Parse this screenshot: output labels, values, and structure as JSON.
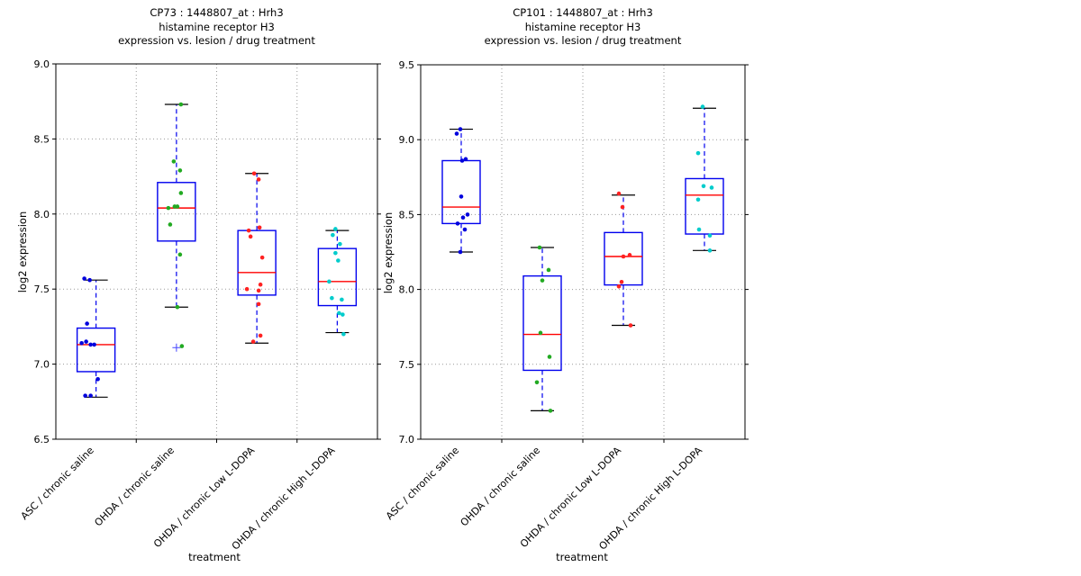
{
  "figure": {
    "background": "#ffffff",
    "style_colors": {
      "box": "#0000ee",
      "median": "#ff0000",
      "whisker": "#0000ee",
      "cap": "#000000",
      "grid": "#999999",
      "outlier_marker": "#4444ff",
      "axis": "#000000"
    }
  },
  "chart_data": [
    {
      "id": "CP73",
      "type": "boxplot",
      "title_lines": [
        "CP73 : 1448807_at : Hrh3",
        "histamine receptor H3",
        "expression vs. lesion / drug treatment"
      ],
      "ylabel": "log2 expression",
      "xlabel": "treatment",
      "ylim": [
        6.5,
        9.0
      ],
      "yticks": [
        6.5,
        7.0,
        7.5,
        8.0,
        8.5,
        9.0
      ],
      "grid": true,
      "categories": [
        "ASC / chronic saline",
        "OHDA / chronic saline",
        "OHDA / chronic Low L-DOPA",
        "OHDA / chronic High L-DOPA"
      ],
      "groups": [
        {
          "category": "ASC / chronic saline",
          "color": "#0000dd",
          "median": 7.13,
          "q1": 6.95,
          "q3": 7.24,
          "whisker_low": 6.78,
          "whisker_high": 7.56,
          "outliers": [],
          "points": [
            [
              -13,
              7.57
            ],
            [
              -7,
              7.56
            ],
            [
              -10,
              7.27
            ],
            [
              -16,
              7.14
            ],
            [
              -11,
              7.15
            ],
            [
              -6,
              7.13
            ],
            [
              -2,
              7.13
            ],
            [
              2,
              6.9
            ],
            [
              -12,
              6.79
            ],
            [
              -6,
              6.79
            ]
          ]
        },
        {
          "category": "OHDA / chronic saline",
          "color": "#22aa22",
          "median": 8.04,
          "q1": 7.82,
          "q3": 8.21,
          "whisker_low": 7.38,
          "whisker_high": 8.73,
          "outliers": [
            7.11
          ],
          "points": [
            [
              5,
              8.73
            ],
            [
              -3,
              8.35
            ],
            [
              4,
              8.29
            ],
            [
              5,
              8.14
            ],
            [
              -9,
              8.04
            ],
            [
              -2,
              8.05
            ],
            [
              1,
              8.05
            ],
            [
              -7,
              7.93
            ],
            [
              4,
              7.73
            ],
            [
              1,
              7.38
            ],
            [
              6,
              7.12
            ]
          ]
        },
        {
          "category": "OHDA / chronic Low L-DOPA",
          "color": "#ff2222",
          "median": 7.61,
          "q1": 7.46,
          "q3": 7.89,
          "whisker_low": 7.14,
          "whisker_high": 8.27,
          "outliers": [],
          "points": [
            [
              -3,
              8.27
            ],
            [
              2,
              8.23
            ],
            [
              3,
              7.91
            ],
            [
              -9,
              7.89
            ],
            [
              -7,
              7.85
            ],
            [
              6,
              7.71
            ],
            [
              4,
              7.53
            ],
            [
              -11,
              7.5
            ],
            [
              2,
              7.49
            ],
            [
              2,
              7.4
            ],
            [
              4,
              7.19
            ],
            [
              -4,
              7.15
            ]
          ]
        },
        {
          "category": "OHDA / chronic High L-DOPA",
          "color": "#00cccc",
          "median": 7.55,
          "q1": 7.39,
          "q3": 7.77,
          "whisker_low": 7.21,
          "whisker_high": 7.89,
          "outliers": [],
          "points": [
            [
              -2,
              7.9
            ],
            [
              -5,
              7.86
            ],
            [
              3,
              7.8
            ],
            [
              -2,
              7.74
            ],
            [
              1,
              7.69
            ],
            [
              -9,
              7.55
            ],
            [
              -6,
              7.44
            ],
            [
              5,
              7.43
            ],
            [
              2,
              7.34
            ],
            [
              6,
              7.33
            ],
            [
              7,
              7.2
            ]
          ]
        }
      ]
    },
    {
      "id": "CP101",
      "type": "boxplot",
      "title_lines": [
        "CP101 : 1448807_at : Hrh3",
        "histamine receptor H3",
        "expression vs. lesion / drug treatment"
      ],
      "ylabel": "log2 expression",
      "xlabel": "treatment",
      "ylim": [
        7.0,
        9.5
      ],
      "yticks": [
        7.0,
        7.5,
        8.0,
        8.5,
        9.0,
        9.5
      ],
      "grid": true,
      "categories": [
        "ASC / chronic saline",
        "OHDA / chronic saline",
        "OHDA / chronic Low L-DOPA",
        "OHDA / chronic High L-DOPA"
      ],
      "groups": [
        {
          "category": "ASC / chronic saline",
          "color": "#0000dd",
          "median": 8.55,
          "q1": 8.44,
          "q3": 8.86,
          "whisker_low": 8.25,
          "whisker_high": 9.07,
          "outliers": [],
          "points": [
            [
              -1,
              9.07
            ],
            [
              -5,
              9.04
            ],
            [
              1,
              8.86
            ],
            [
              5,
              8.87
            ],
            [
              0,
              8.62
            ],
            [
              7,
              8.5
            ],
            [
              2,
              8.48
            ],
            [
              -4,
              8.44
            ],
            [
              4,
              8.4
            ],
            [
              -1,
              8.25
            ]
          ]
        },
        {
          "category": "OHDA / chronic saline",
          "color": "#22aa22",
          "median": 7.7,
          "q1": 7.46,
          "q3": 8.09,
          "whisker_low": 7.19,
          "whisker_high": 8.28,
          "outliers": [],
          "points": [
            [
              -3,
              8.28
            ],
            [
              7,
              8.13
            ],
            [
              0,
              8.06
            ],
            [
              -2,
              7.71
            ],
            [
              8,
              7.55
            ],
            [
              -6,
              7.38
            ],
            [
              9,
              7.19
            ]
          ]
        },
        {
          "category": "OHDA / chronic Low L-DOPA",
          "color": "#ff2222",
          "median": 8.22,
          "q1": 8.03,
          "q3": 8.38,
          "whisker_low": 7.76,
          "whisker_high": 8.63,
          "outliers": [],
          "points": [
            [
              -5,
              8.64
            ],
            [
              -1,
              8.55
            ],
            [
              0,
              8.22
            ],
            [
              7,
              8.23
            ],
            [
              -2,
              8.05
            ],
            [
              -5,
              8.02
            ],
            [
              8,
              7.76
            ]
          ]
        },
        {
          "category": "OHDA / chronic High L-DOPA",
          "color": "#00cccc",
          "median": 8.63,
          "q1": 8.37,
          "q3": 8.74,
          "whisker_low": 8.26,
          "whisker_high": 9.21,
          "outliers": [],
          "points": [
            [
              -2,
              9.22
            ],
            [
              -7,
              8.91
            ],
            [
              -1,
              8.69
            ],
            [
              8,
              8.68
            ],
            [
              -7,
              8.6
            ],
            [
              -6,
              8.4
            ],
            [
              6,
              8.36
            ],
            [
              6,
              8.26
            ]
          ]
        }
      ]
    }
  ]
}
